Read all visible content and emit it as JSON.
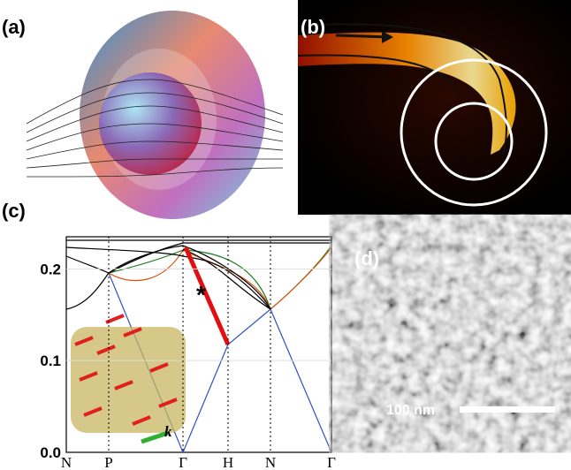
{
  "panels": [
    {
      "label": "(a)"
    },
    {
      "label": "(b)"
    },
    {
      "label": "(c)",
      "ylim": [
        0,
        0.235
      ],
      "yticks": [
        {
          "value": 0,
          "label": "0.0"
        },
        {
          "value": 0.1,
          "label": "0.1"
        },
        {
          "value": 0.2,
          "label": "0.2"
        }
      ],
      "xticks": [
        "N",
        "P",
        "Γ",
        "H",
        "N",
        "Γ"
      ],
      "annotations": [
        "*",
        "k"
      ]
    },
    {
      "label": "(d)",
      "scale_bar": "100 nm"
    }
  ]
}
